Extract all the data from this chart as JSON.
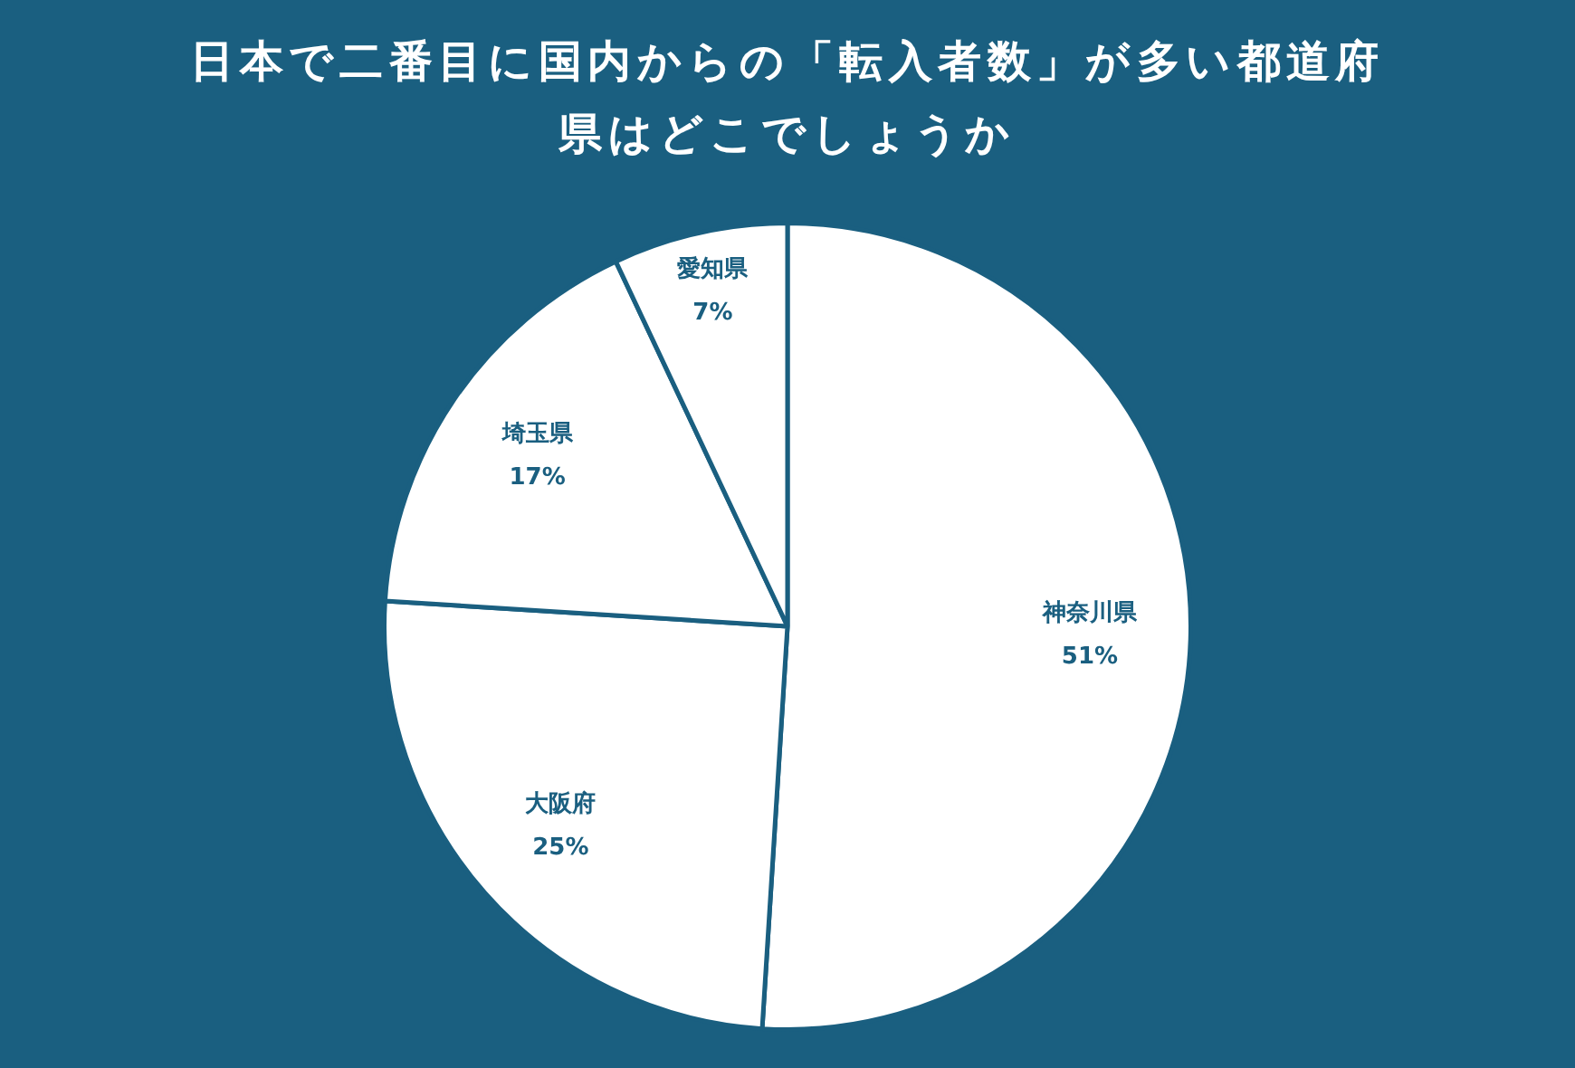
{
  "chart_data": {
    "type": "pie",
    "title": "日本で二番目に国内からの「転入者数」が多い都道府県はどこでしょうか",
    "categories": [
      "神奈川県",
      "大阪府",
      "埼玉県",
      "愛知県"
    ],
    "values": [
      51,
      25,
      17,
      7
    ],
    "colors": [
      "#ffffff",
      "#ffffff",
      "#ffffff",
      "#ffffff"
    ],
    "value_labels": [
      "51%",
      "25%",
      "17%",
      "7%"
    ],
    "legend": false
  }
}
